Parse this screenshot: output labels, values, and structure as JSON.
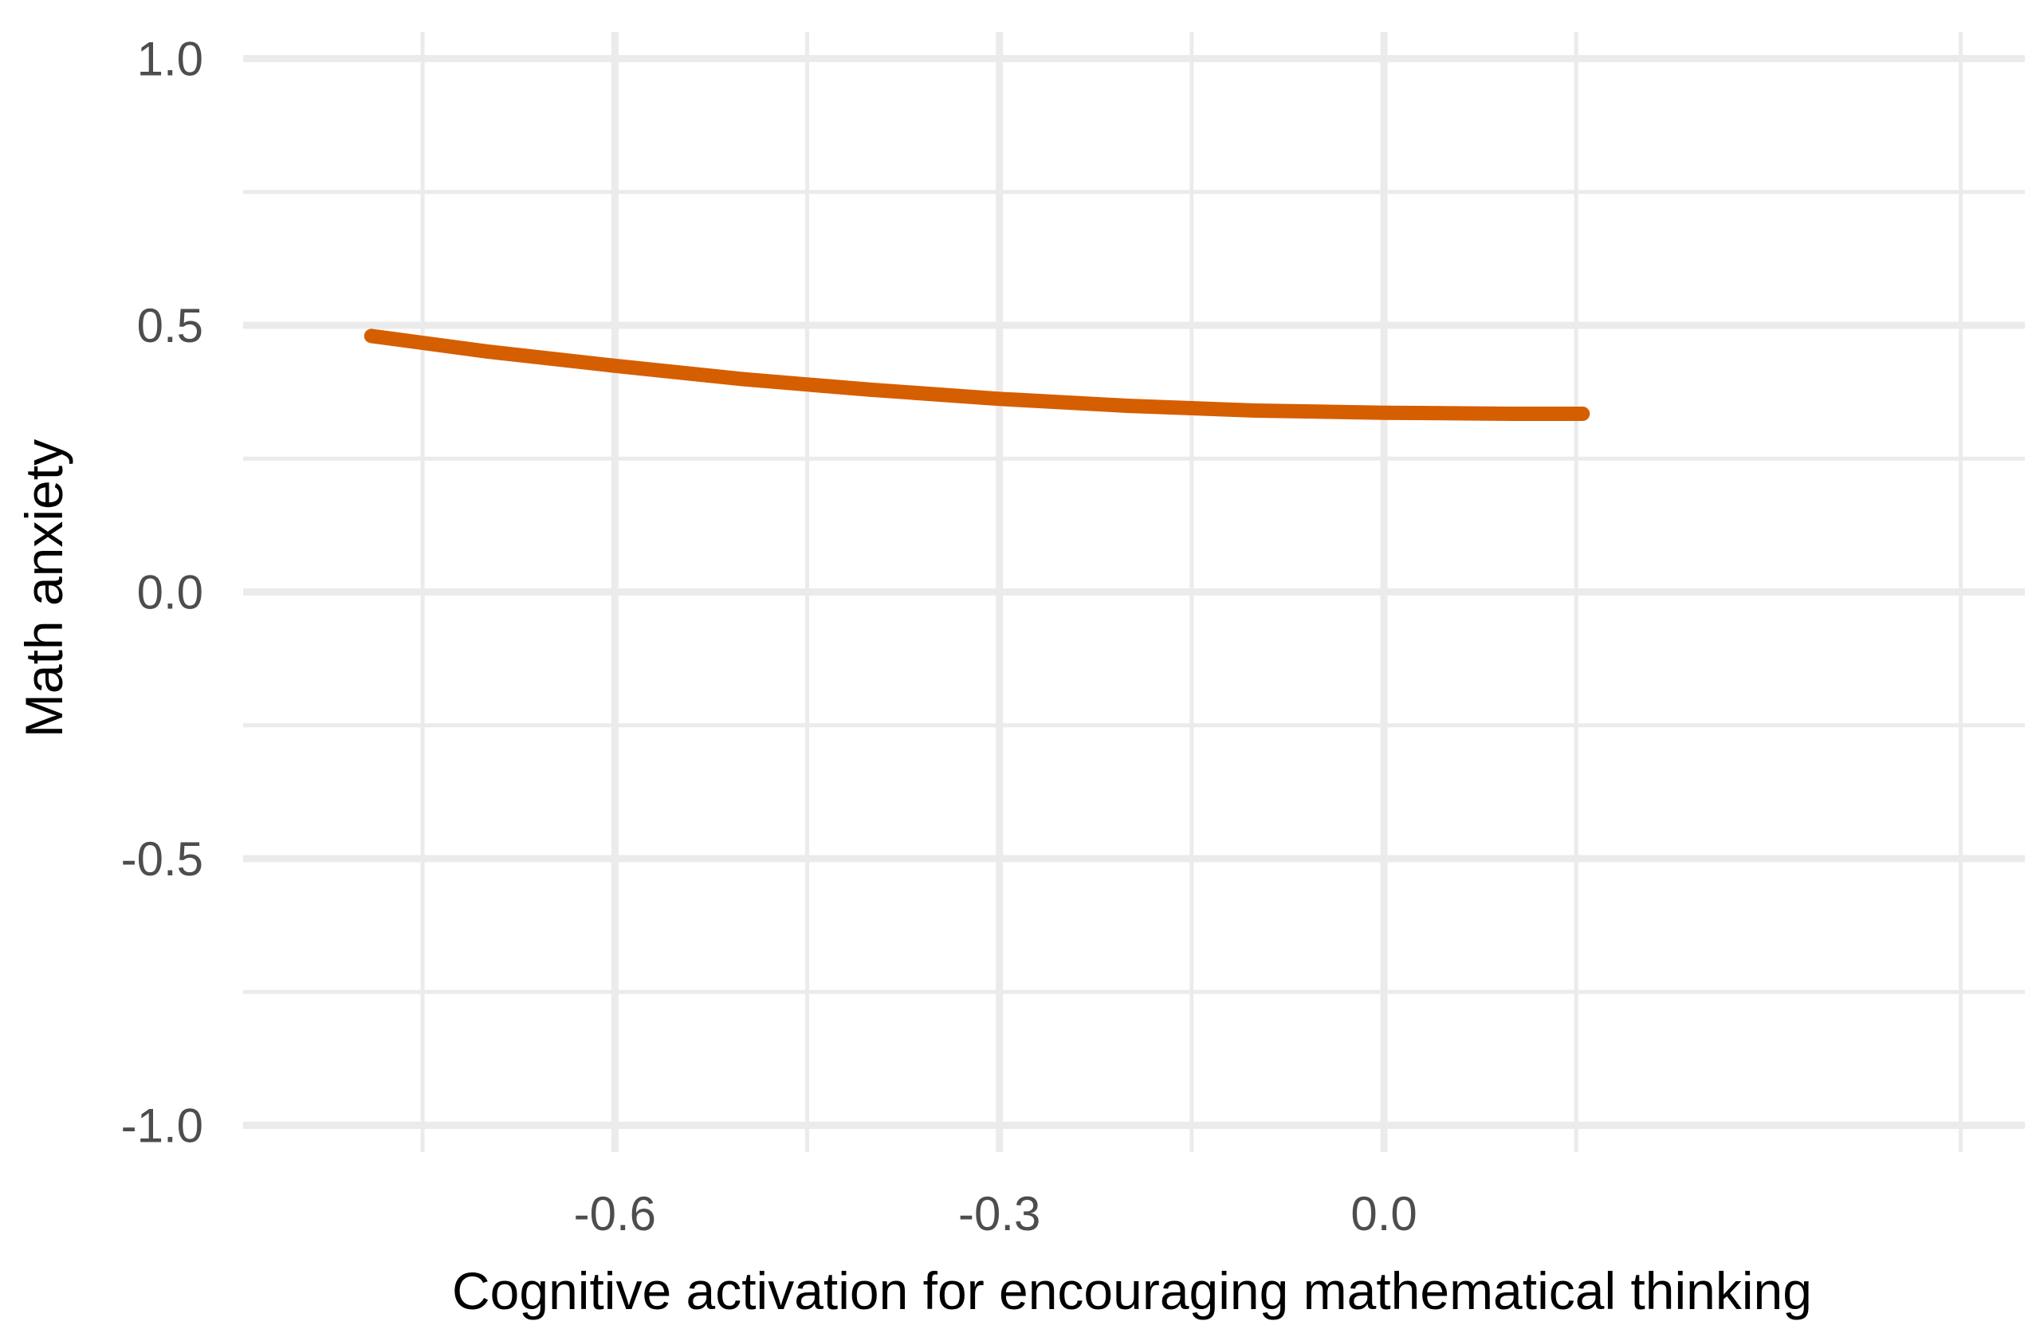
{
  "chart_data": {
    "type": "line",
    "title": "",
    "xlabel": "Cognitive activation for encouraging mathematical thinking",
    "ylabel": "Math anxiety",
    "xlim": [
      -0.89,
      0.5
    ],
    "ylim": [
      -1.05,
      1.05
    ],
    "x_ticks": [
      -0.6,
      -0.3,
      0.0
    ],
    "x_tick_labels": [
      "-0.6",
      "-0.3",
      "0.0"
    ],
    "y_ticks": [
      -1.0,
      -0.5,
      0.0,
      0.5,
      1.0
    ],
    "y_tick_labels": [
      "-1.0",
      "-0.5",
      "0.0",
      "0.5",
      "1.0"
    ],
    "grid": true,
    "line_color": "#d55e00",
    "series": [
      {
        "x": [
          -0.79,
          -0.7,
          -0.6,
          -0.5,
          -0.4,
          -0.3,
          -0.2,
          -0.1,
          0.0,
          0.1,
          0.155
        ],
        "y": [
          0.48,
          0.451,
          0.424,
          0.399,
          0.379,
          0.362,
          0.349,
          0.34,
          0.336,
          0.334,
          0.334
        ]
      }
    ]
  }
}
